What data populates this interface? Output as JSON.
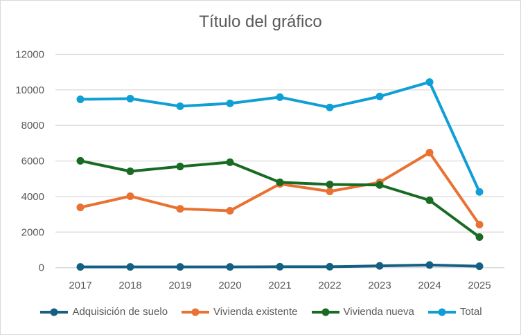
{
  "chart_data": {
    "type": "line",
    "title": "Título del gráfico",
    "xlabel": "",
    "ylabel": "",
    "categories": [
      "2017",
      "2018",
      "2019",
      "2020",
      "2021",
      "2022",
      "2023",
      "2024",
      "2025"
    ],
    "ylim": [
      0,
      12000
    ],
    "yticks": [
      "0",
      "2000",
      "4000",
      "6000",
      "8000",
      "10000",
      "12000"
    ],
    "grid": true,
    "legend_position": "bottom",
    "series": [
      {
        "name": "Adquisición de suelo",
        "color": "#156082",
        "values": [
          40,
          40,
          40,
          40,
          50,
          50,
          100,
          150,
          80
        ]
      },
      {
        "name": "Vivienda existente",
        "color": "#E97132",
        "values": [
          3390,
          4020,
          3310,
          3200,
          4710,
          4290,
          4800,
          6470,
          2420
        ]
      },
      {
        "name": "Vivienda nueva",
        "color": "#196B24",
        "values": [
          6010,
          5420,
          5690,
          5930,
          4800,
          4680,
          4650,
          3790,
          1720
        ]
      },
      {
        "name": "Total",
        "color": "#0F9ED5",
        "values": [
          9470,
          9510,
          9080,
          9240,
          9590,
          9010,
          9630,
          10440,
          4260
        ]
      }
    ]
  }
}
